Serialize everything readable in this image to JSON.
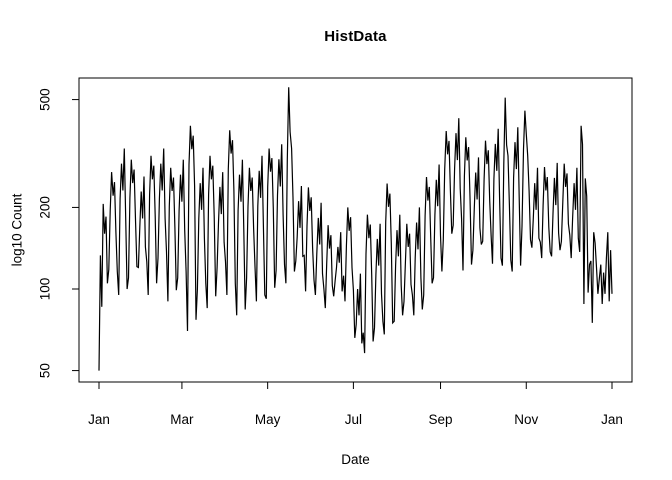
{
  "window": {
    "background_color": "#ffffff",
    "foreground_color": "#000000"
  },
  "chart": {
    "title": "HistData",
    "xlabel": "Date",
    "ylabel": "log10 Count"
  },
  "chart_data": {
    "type": "line",
    "title": "HistData",
    "xlabel": "Date",
    "ylabel": "log10 Count",
    "series_name": "HistData",
    "line_color": "#000000",
    "grid": false,
    "legend": false,
    "y_scale": "log10",
    "ylim": [
      45,
      600
    ],
    "y_ticks": [
      50,
      100,
      200,
      500
    ],
    "y_tick_labels": [
      "50",
      "100",
      "200",
      "500"
    ],
    "x_unit": "day-of-year",
    "x_range_days": [
      0,
      365
    ],
    "x_tick_days": [
      0,
      59,
      120,
      181,
      243,
      304,
      365
    ],
    "x_tick_labels": [
      "Jan",
      "Mar",
      "May",
      "Jul",
      "Sep",
      "Nov",
      "Jan"
    ],
    "values": [
      50,
      133,
      86,
      206,
      160,
      185,
      105,
      118,
      194,
      270,
      221,
      248,
      162,
      116,
      95,
      215,
      290,
      231,
      330,
      182,
      100,
      110,
      216,
      300,
      246,
      276,
      180,
      121,
      120,
      169,
      229,
      182,
      260,
      143,
      126,
      95,
      223,
      310,
      254,
      285,
      186,
      105,
      130,
      215,
      290,
      231,
      330,
      182,
      137,
      90,
      202,
      280,
      230,
      258,
      168,
      99,
      110,
      195,
      264,
      210,
      300,
      165,
      116,
      70,
      288,
      400,
      328,
      368,
      240,
      77,
      100,
      182,
      246,
      196,
      280,
      154,
      105,
      85,
      223,
      310,
      254,
      285,
      186,
      94,
      120,
      176,
      238,
      189,
      270,
      149,
      126,
      95,
      277,
      385,
      316,
      354,
      231,
      105,
      80,
      195,
      264,
      210,
      300,
      165,
      84,
      110,
      202,
      280,
      230,
      258,
      168,
      121,
      90,
      202,
      273,
      217,
      310,
      171,
      95,
      92,
      238,
      330,
      271,
      304,
      198,
      101,
      117,
      222,
      301,
      239,
      342,
      188,
      123,
      105,
      300,
      555,
      380,
      330,
      217,
      116,
      127,
      156,
      211,
      168,
      240,
      132,
      133,
      98,
      171,
      237,
      194,
      218,
      142,
      108,
      95,
      135,
      183,
      146,
      208,
      114,
      100,
      85,
      124,
      172,
      141,
      158,
      103,
      94,
      107,
      120,
      143,
      125,
      162,
      98,
      112,
      90,
      144,
      200,
      164,
      184,
      120,
      99,
      66,
      74,
      100,
      80,
      114,
      63,
      69,
      58,
      135,
      188,
      154,
      173,
      113,
      64,
      72,
      113,
      153,
      122,
      174,
      96,
      76,
      68,
      176,
      245,
      201,
      225,
      147,
      75,
      76,
      122,
      165,
      132,
      188,
      103,
      80,
      90,
      125,
      174,
      143,
      160,
      104,
      95,
      80,
      130,
      176,
      140,
      200,
      110,
      84,
      95,
      186,
      259,
      212,
      238,
      155,
      105,
      110,
      187,
      253,
      202,
      288,
      158,
      116,
      152,
      276,
      383,
      314,
      352,
      230,
      160,
      172,
      278,
      376,
      299,
      427,
      235,
      181,
      117,
      261,
      363,
      298,
      334,
      218,
      123,
      139,
      199,
      269,
      214,
      306,
      168,
      146,
      150,
      254,
      353,
      289,
      325,
      212,
      158,
      124,
      254,
      343,
      273,
      390,
      215,
      130,
      122,
      290,
      508,
      340,
      310,
      204,
      128,
      116,
      257,
      348,
      277,
      395,
      217,
      122,
      170,
      328,
      455,
      373,
      310,
      230,
      152,
      142,
      182,
      246,
      196,
      280,
      154,
      149,
      130,
      203,
      282,
      231,
      259,
      169,
      137,
      132,
      190,
      257,
      204,
      292,
      161,
      139,
      150,
      209,
      290,
      238,
      267,
      174,
      158,
      130,
      182,
      246,
      196,
      280,
      154,
      137,
      400,
      342,
      88,
      256,
      220,
      97,
      123,
      127,
      75,
      162,
      148,
      120,
      96,
      110,
      123,
      88,
      115,
      96,
      130,
      162,
      90,
      139,
      96
    ]
  }
}
